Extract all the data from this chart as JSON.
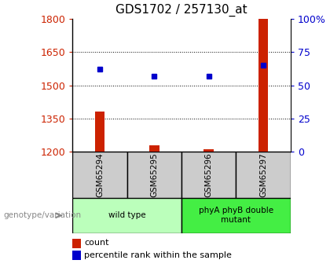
{
  "title": "GDS1702 / 257130_at",
  "samples": [
    "GSM65294",
    "GSM65295",
    "GSM65296",
    "GSM65297"
  ],
  "count_values": [
    1380,
    1230,
    1210,
    1800
  ],
  "percentile_values": [
    62,
    57,
    57,
    65
  ],
  "left_ylim": [
    1200,
    1800
  ],
  "left_yticks": [
    1200,
    1350,
    1500,
    1650,
    1800
  ],
  "right_ylim": [
    0,
    100
  ],
  "right_yticks": [
    0,
    25,
    50,
    75,
    100
  ],
  "right_yticklabels": [
    "0",
    "25",
    "50",
    "75",
    "100%"
  ],
  "bar_color": "#cc2200",
  "dot_color": "#0000cc",
  "groups": [
    {
      "label": "wild type",
      "samples": [
        0,
        1
      ],
      "color": "#bbffbb"
    },
    {
      "label": "phyA phyB double\nmutant",
      "samples": [
        2,
        3
      ],
      "color": "#44ee44"
    }
  ],
  "genotype_label": "genotype/variation",
  "legend_count_label": "count",
  "legend_percentile_label": "percentile rank within the sample",
  "sample_box_color": "#cccccc",
  "title_fontsize": 11,
  "tick_fontsize": 9
}
